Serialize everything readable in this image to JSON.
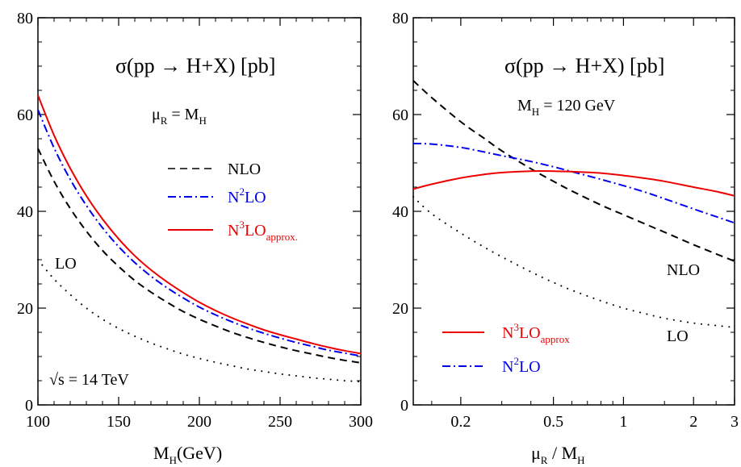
{
  "chart_data": [
    {
      "type": "line",
      "title": "σ(pp → H+X) [pb]",
      "annotation": {
        "base": "μ",
        "sub": "R",
        "eq": " = M",
        "sub2": "H"
      },
      "energy_label": "√s = 14 TeV",
      "xlabel": {
        "base": "M",
        "sub": "H",
        "rest": "(GeV)"
      },
      "xlim": [
        100,
        300
      ],
      "ylim": [
        0,
        80
      ],
      "xticks": [
        100,
        150,
        200,
        250,
        300
      ],
      "yticks": [
        0,
        20,
        40,
        60,
        80
      ],
      "series": [
        {
          "name": "LO",
          "label": "LO",
          "color": "#000000",
          "style": "dotted",
          "x": [
            100,
            110,
            120,
            130,
            140,
            150,
            160,
            170,
            180,
            190,
            200,
            210,
            220,
            230,
            240,
            250,
            260,
            270,
            280,
            290,
            300
          ],
          "y": [
            30.0,
            26.0,
            22.8,
            20.0,
            17.7,
            15.8,
            14.2,
            12.8,
            11.6,
            10.5,
            9.6,
            8.8,
            8.1,
            7.4,
            6.9,
            6.4,
            6.0,
            5.6,
            5.3,
            5.0,
            4.8
          ]
        },
        {
          "name": "NLO",
          "label": "NLO",
          "color": "#000000",
          "style": "dashed",
          "x": [
            100,
            110,
            120,
            130,
            140,
            150,
            160,
            170,
            180,
            190,
            200,
            210,
            220,
            230,
            240,
            250,
            260,
            270,
            280,
            290,
            300
          ],
          "y": [
            53.0,
            46.2,
            40.6,
            35.9,
            31.9,
            28.6,
            25.7,
            23.3,
            21.2,
            19.3,
            17.7,
            16.3,
            15.0,
            13.9,
            12.9,
            12.0,
            11.2,
            10.5,
            9.8,
            9.2,
            8.7
          ]
        },
        {
          "name": "N²LO",
          "label": {
            "base": "N",
            "sup": "2",
            "rest": "LO"
          },
          "color": "#0000ee",
          "style": "dashdot",
          "x": [
            100,
            110,
            120,
            130,
            140,
            150,
            160,
            170,
            180,
            190,
            200,
            210,
            220,
            230,
            240,
            250,
            260,
            270,
            280,
            290,
            300
          ],
          "y": [
            61.0,
            53.1,
            46.6,
            41.2,
            36.6,
            32.7,
            29.4,
            26.6,
            24.2,
            22.1,
            20.2,
            18.6,
            17.2,
            15.9,
            14.8,
            13.8,
            12.9,
            12.1,
            11.3,
            10.7,
            10.1
          ]
        },
        {
          "name": "N³LO approx.",
          "label": {
            "base": "N",
            "sup": "3",
            "rest": "LO",
            "sub": "approx."
          },
          "color": "#ee0000",
          "style": "solid",
          "x": [
            100,
            110,
            120,
            130,
            140,
            150,
            160,
            170,
            180,
            190,
            200,
            210,
            220,
            230,
            240,
            250,
            260,
            270,
            280,
            290,
            300
          ],
          "y": [
            64.0,
            55.7,
            48.9,
            43.2,
            38.4,
            34.3,
            30.8,
            27.9,
            25.4,
            23.2,
            21.2,
            19.5,
            18.0,
            16.7,
            15.5,
            14.5,
            13.6,
            12.7,
            11.9,
            11.2,
            10.6
          ]
        }
      ]
    },
    {
      "type": "line",
      "title": "σ(pp → H+X) [pb]",
      "annotation": {
        "base": "M",
        "sub": "H",
        "eq": " = 120 GeV"
      },
      "xlabel": {
        "base": "μ",
        "sub": "R",
        "mid": " / M",
        "sub2": "H"
      },
      "xscale": "log",
      "xlim": [
        0.125,
        3
      ],
      "ylim": [
        0,
        80
      ],
      "xticks": [
        0.2,
        0.5,
        1,
        2,
        3
      ],
      "xtick_labels": [
        "0.2",
        "0.5",
        "1",
        "2",
        "3"
      ],
      "yticks": [
        0,
        20,
        40,
        60,
        80
      ],
      "series": [
        {
          "name": "LO",
          "label": "LO",
          "color": "#000000",
          "style": "dotted",
          "x": [
            0.125,
            0.15,
            0.2,
            0.25,
            0.3,
            0.4,
            0.5,
            0.6,
            0.8,
            1,
            1.25,
            1.5,
            2,
            2.5,
            3
          ],
          "y": [
            43.0,
            39.5,
            35.5,
            32.7,
            30.6,
            27.5,
            25.3,
            23.7,
            21.5,
            20.0,
            18.8,
            17.9,
            16.9,
            16.4,
            16.0
          ]
        },
        {
          "name": "NLO",
          "label": "NLO",
          "color": "#000000",
          "style": "dashed",
          "x": [
            0.125,
            0.15,
            0.2,
            0.25,
            0.3,
            0.4,
            0.5,
            0.6,
            0.8,
            1,
            1.25,
            1.5,
            2,
            2.5,
            3
          ],
          "y": [
            67.0,
            63.5,
            58.5,
            55.2,
            52.5,
            48.8,
            46.2,
            44.2,
            41.3,
            39.3,
            37.3,
            35.7,
            33.1,
            31.2,
            29.7
          ]
        },
        {
          "name": "N²LO",
          "label": {
            "base": "N",
            "sup": "2",
            "rest": "LO"
          },
          "color": "#0000ee",
          "style": "dashdot",
          "x": [
            0.125,
            0.15,
            0.2,
            0.25,
            0.3,
            0.4,
            0.5,
            0.6,
            0.8,
            1,
            1.25,
            1.5,
            2,
            2.5,
            3
          ],
          "y": [
            54.0,
            53.9,
            53.2,
            52.3,
            51.5,
            50.3,
            49.2,
            48.2,
            46.6,
            45.3,
            43.9,
            42.6,
            40.5,
            38.9,
            37.6
          ]
        },
        {
          "name": "N³LO approx",
          "label": {
            "base": "N",
            "sup": "3",
            "rest": "LO",
            "sub": "approx"
          },
          "color": "#ee0000",
          "style": "solid",
          "x": [
            0.125,
            0.15,
            0.2,
            0.25,
            0.3,
            0.4,
            0.5,
            0.6,
            0.8,
            1,
            1.25,
            1.5,
            2,
            2.5,
            3
          ],
          "y": [
            44.6,
            45.6,
            46.9,
            47.6,
            48.0,
            48.3,
            48.3,
            48.2,
            47.9,
            47.4,
            46.8,
            46.2,
            45.0,
            44.1,
            43.2
          ]
        }
      ]
    }
  ]
}
